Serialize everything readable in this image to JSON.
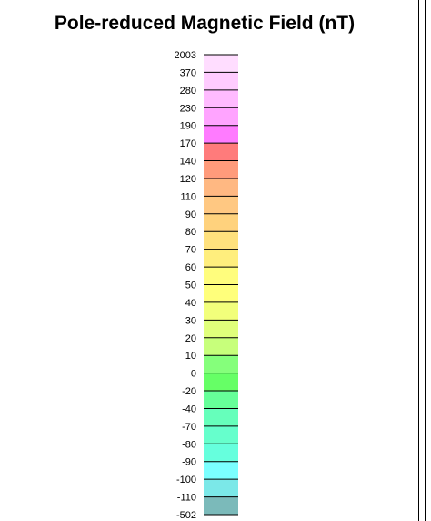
{
  "chart_data": {
    "type": "heatmap",
    "title": "Pole-reduced Magnetic Field (nT)",
    "tick_labels": [
      "2003",
      "370",
      "280",
      "230",
      "190",
      "170",
      "140",
      "120",
      "110",
      "90",
      "80",
      "70",
      "60",
      "50",
      "40",
      "30",
      "20",
      "10",
      "0",
      "-20",
      "-40",
      "-70",
      "-80",
      "-90",
      "-100",
      "-110",
      "-502"
    ],
    "colors": [
      "#ffddff",
      "#ffccff",
      "#ffbbff",
      "#ffa4ff",
      "#ff7bff",
      "#ff7b7b",
      "#ff9b7b",
      "#ffb882",
      "#ffc882",
      "#ffd27d",
      "#ffe17d",
      "#ffee7d",
      "#fffd7d",
      "#ffff7b",
      "#f2ff7b",
      "#e0ff7b",
      "#c7ff7b",
      "#85ff7b",
      "#66ff66",
      "#66ff99",
      "#66ffbb",
      "#66ffcc",
      "#66ffdd",
      "#7bffff",
      "#7be8e8",
      "#7bd1d1",
      "#7bbaba"
    ]
  }
}
